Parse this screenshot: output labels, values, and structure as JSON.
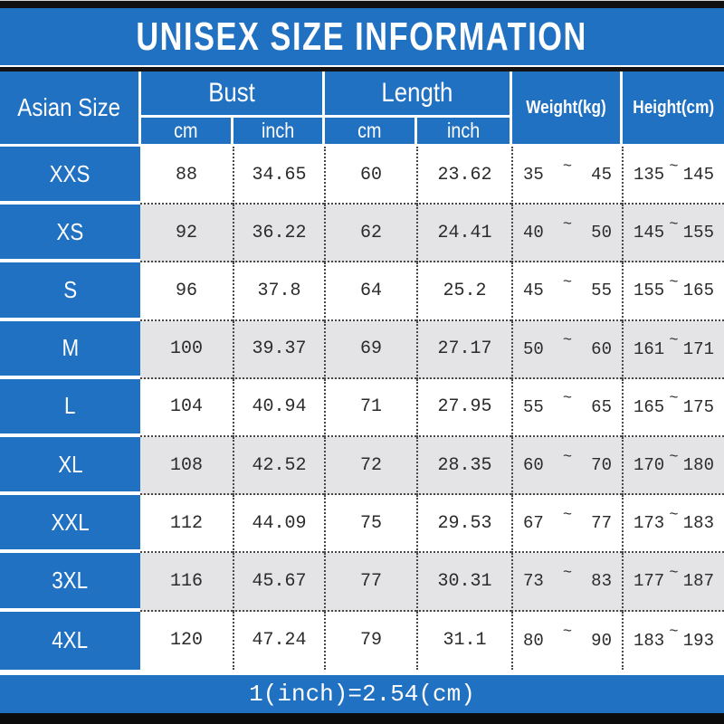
{
  "chart_data": {
    "type": "table",
    "title": "UNISEX SIZE INFORMATION",
    "footnote": "1(inch)=2.54(cm)",
    "range_separator": "~",
    "column_groups": [
      {
        "label": "Asian Size"
      },
      {
        "label": "Bust",
        "sub": [
          "cm",
          "inch"
        ]
      },
      {
        "label": "Length",
        "sub": [
          "cm",
          "inch"
        ]
      },
      {
        "label": "Weight(kg)"
      },
      {
        "label": "Height(cm)"
      }
    ],
    "rows": [
      {
        "size": "XXS",
        "bust_cm": "88",
        "bust_inch": "34.65",
        "length_cm": "60",
        "length_inch": "23.62",
        "weight_min": "35",
        "weight_max": "45",
        "height_min": "135",
        "height_max": "145"
      },
      {
        "size": "XS",
        "bust_cm": "92",
        "bust_inch": "36.22",
        "length_cm": "62",
        "length_inch": "24.41",
        "weight_min": "40",
        "weight_max": "50",
        "height_min": "145",
        "height_max": "155"
      },
      {
        "size": "S",
        "bust_cm": "96",
        "bust_inch": "37.8",
        "length_cm": "64",
        "length_inch": "25.2",
        "weight_min": "45",
        "weight_max": "55",
        "height_min": "155",
        "height_max": "165"
      },
      {
        "size": "M",
        "bust_cm": "100",
        "bust_inch": "39.37",
        "length_cm": "69",
        "length_inch": "27.17",
        "weight_min": "50",
        "weight_max": "60",
        "height_min": "161",
        "height_max": "171"
      },
      {
        "size": "L",
        "bust_cm": "104",
        "bust_inch": "40.94",
        "length_cm": "71",
        "length_inch": "27.95",
        "weight_min": "55",
        "weight_max": "65",
        "height_min": "165",
        "height_max": "175"
      },
      {
        "size": "XL",
        "bust_cm": "108",
        "bust_inch": "42.52",
        "length_cm": "72",
        "length_inch": "28.35",
        "weight_min": "60",
        "weight_max": "70",
        "height_min": "170",
        "height_max": "180"
      },
      {
        "size": "XXL",
        "bust_cm": "112",
        "bust_inch": "44.09",
        "length_cm": "75",
        "length_inch": "29.53",
        "weight_min": "67",
        "weight_max": "77",
        "height_min": "173",
        "height_max": "183"
      },
      {
        "size": "3XL",
        "bust_cm": "116",
        "bust_inch": "45.67",
        "length_cm": "77",
        "length_inch": "30.31",
        "weight_min": "73",
        "weight_max": "83",
        "height_min": "177",
        "height_max": "187"
      },
      {
        "size": "4XL",
        "bust_cm": "120",
        "bust_inch": "47.24",
        "length_cm": "79",
        "length_inch": "31.1",
        "weight_min": "80",
        "weight_max": "90",
        "height_min": "183",
        "height_max": "193"
      }
    ]
  },
  "colors": {
    "brand_blue": "#2171c2",
    "alt_row_gray": "#e4e3e6",
    "frame_black": "#0b0b0b",
    "dotted_border": "#474747",
    "text_dark": "#2b2b2b",
    "text_white": "#ffffff"
  }
}
